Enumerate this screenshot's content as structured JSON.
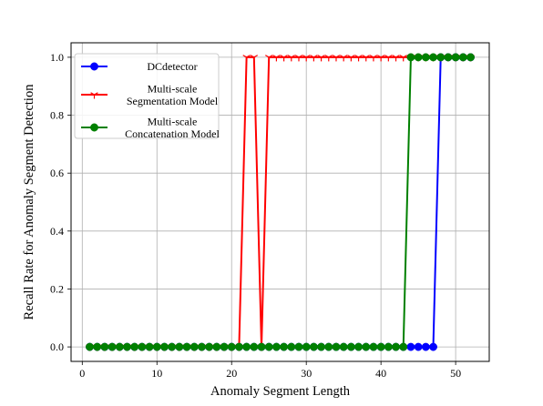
{
  "chart_data": {
    "type": "line",
    "title": "",
    "xlabel": "Anomaly Segment Length",
    "ylabel": "Recall Rate for Anomaly Segment Detection",
    "xlim": [
      -1.5,
      54.5
    ],
    "ylim": [
      -0.05,
      1.05
    ],
    "xticks": [
      0,
      10,
      20,
      30,
      40,
      50
    ],
    "yticks": [
      0.0,
      0.2,
      0.4,
      0.6,
      0.8,
      1.0
    ],
    "xtick_labels": [
      "0",
      "10",
      "20",
      "30",
      "40",
      "50"
    ],
    "ytick_labels": [
      "0.0",
      "0.2",
      "0.4",
      "0.6",
      "0.8",
      "1.0"
    ],
    "grid": true,
    "legend_position": "top-left",
    "series": [
      {
        "name": "DCdetector",
        "color": "#0000ff",
        "marker": "circle",
        "x": [
          1,
          2,
          3,
          4,
          5,
          6,
          7,
          8,
          9,
          10,
          11,
          12,
          13,
          14,
          15,
          16,
          17,
          18,
          19,
          20,
          21,
          22,
          23,
          24,
          25,
          26,
          27,
          28,
          29,
          30,
          31,
          32,
          33,
          34,
          35,
          36,
          37,
          38,
          39,
          40,
          41,
          42,
          43,
          44,
          45,
          46,
          47,
          48,
          49,
          50,
          51,
          52
        ],
        "y": [
          0,
          0,
          0,
          0,
          0,
          0,
          0,
          0,
          0,
          0,
          0,
          0,
          0,
          0,
          0,
          0,
          0,
          0,
          0,
          0,
          0,
          0,
          0,
          0,
          0,
          0,
          0,
          0,
          0,
          0,
          0,
          0,
          0,
          0,
          0,
          0,
          0,
          0,
          0,
          0,
          0,
          0,
          0,
          0,
          0,
          0,
          0,
          1,
          1,
          1,
          1,
          1
        ]
      },
      {
        "name": "Multi-scale Segmentation Model",
        "legend_lines": [
          "Multi-scale",
          "Segmentation Model"
        ],
        "color": "#ff0000",
        "marker": "tri_down",
        "x": [
          1,
          2,
          3,
          4,
          5,
          6,
          7,
          8,
          9,
          10,
          11,
          12,
          13,
          14,
          15,
          16,
          17,
          18,
          19,
          20,
          21,
          22,
          23,
          24,
          25,
          26,
          27,
          28,
          29,
          30,
          31,
          32,
          33,
          34,
          35,
          36,
          37,
          38,
          39,
          40,
          41,
          42,
          43,
          44,
          45,
          46,
          47,
          48,
          49,
          50,
          51,
          52
        ],
        "y": [
          0,
          0,
          0,
          0,
          0,
          0,
          0,
          0,
          0,
          0,
          0,
          0,
          0,
          0,
          0,
          0,
          0,
          0,
          0,
          0,
          0,
          1,
          1,
          0,
          1,
          1,
          1,
          1,
          1,
          1,
          1,
          1,
          1,
          1,
          1,
          1,
          1,
          1,
          1,
          1,
          1,
          1,
          1,
          1,
          1,
          1,
          1,
          1,
          1,
          1,
          1,
          1
        ]
      },
      {
        "name": "Multi-scale Concatenation Model",
        "legend_lines": [
          "Multi-scale",
          "Concatenation Model"
        ],
        "color": "#008000",
        "marker": "circle",
        "x": [
          1,
          2,
          3,
          4,
          5,
          6,
          7,
          8,
          9,
          10,
          11,
          12,
          13,
          14,
          15,
          16,
          17,
          18,
          19,
          20,
          21,
          22,
          23,
          24,
          25,
          26,
          27,
          28,
          29,
          30,
          31,
          32,
          33,
          34,
          35,
          36,
          37,
          38,
          39,
          40,
          41,
          42,
          43,
          44,
          45,
          46,
          47,
          48,
          49,
          50,
          51,
          52
        ],
        "y": [
          0,
          0,
          0,
          0,
          0,
          0,
          0,
          0,
          0,
          0,
          0,
          0,
          0,
          0,
          0,
          0,
          0,
          0,
          0,
          0,
          0,
          0,
          0,
          0,
          0,
          0,
          0,
          0,
          0,
          0,
          0,
          0,
          0,
          0,
          0,
          0,
          0,
          0,
          0,
          0,
          0,
          0,
          0,
          1,
          1,
          1,
          1,
          1,
          1,
          1,
          1,
          1
        ]
      }
    ]
  }
}
